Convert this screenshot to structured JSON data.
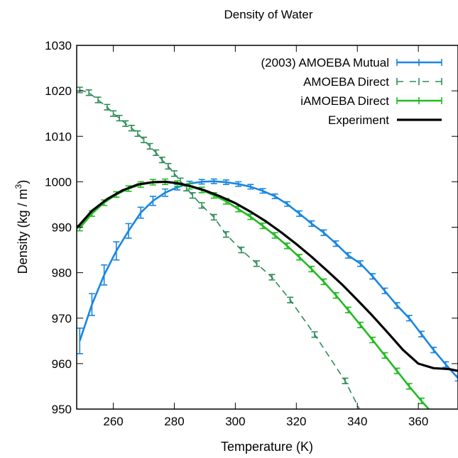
{
  "chart_data": {
    "type": "line",
    "title": "Density of Water",
    "xlabel": "Temperature (K)",
    "ylabel_main": "Density (kg / m",
    "ylabel_sup": "3",
    "ylabel_close": ")",
    "xlim": [
      248,
      373
    ],
    "ylim": [
      950,
      1030
    ],
    "x_ticks": [
      260,
      280,
      300,
      320,
      340,
      360
    ],
    "y_ticks": [
      950,
      960,
      970,
      980,
      990,
      1000,
      1010,
      1020,
      1030
    ],
    "grid": false,
    "legend_position": "top-right",
    "series": [
      {
        "name": "(2003) AMOEBA Mutual",
        "color": "#1a86e0",
        "style": "solid-errorbars",
        "x": [
          249,
          253,
          257,
          261,
          265,
          269,
          273,
          277,
          281,
          285,
          289,
          293,
          297,
          301,
          305,
          309,
          313,
          317,
          321,
          325,
          329,
          333,
          337,
          341,
          345,
          349,
          353,
          357,
          361,
          365,
          369,
          373
        ],
        "y": [
          965,
          973,
          979.5,
          984.8,
          989.2,
          993.2,
          995.8,
          997.6,
          998.8,
          999.6,
          1000.0,
          1000.1,
          999.9,
          999.5,
          998.9,
          998.0,
          996.8,
          995.1,
          993.0,
          990.8,
          988.8,
          986.4,
          983.8,
          982.0,
          979.2,
          976.0,
          972.8,
          970.0,
          966.5,
          963.0,
          959.8,
          956.8
        ],
        "err": [
          2.8,
          2.4,
          2.2,
          2.0,
          1.6,
          1.2,
          1.0,
          0.8,
          0.6,
          0.5,
          0.5,
          0.5,
          0.5,
          0.5,
          0.5,
          0.5,
          0.5,
          0.5,
          0.6,
          0.6,
          0.6,
          0.6,
          0.6,
          0.6,
          0.6,
          0.6,
          0.6,
          0.6,
          0.6,
          0.6,
          0.6,
          0.6
        ]
      },
      {
        "name": "AMOEBA Direct",
        "color": "#2e8b57",
        "style": "dashed-errorbars",
        "x": [
          249,
          252,
          255,
          258,
          260,
          262,
          264,
          266,
          268,
          270,
          272,
          274,
          276,
          278,
          280,
          282,
          284,
          286,
          289,
          293,
          297,
          302,
          307,
          312,
          318,
          326,
          336,
          346
        ],
        "y": [
          1020.2,
          1019.6,
          1018.0,
          1016.4,
          1015.0,
          1014.0,
          1012.8,
          1011.8,
          1010.6,
          1009.2,
          1007.8,
          1006.4,
          1004.8,
          1003.4,
          1001.8,
          1000.2,
          998.6,
          997.0,
          994.8,
          992.2,
          988.4,
          985.0,
          982.0,
          979.0,
          974.0,
          966.4,
          956.2,
          943.0
        ],
        "err": [
          0.6,
          0.6,
          0.6,
          0.6,
          0.6,
          0.6,
          0.6,
          0.6,
          0.6,
          0.6,
          0.6,
          0.6,
          0.6,
          0.6,
          0.6,
          0.6,
          0.6,
          0.6,
          0.6,
          0.6,
          0.6,
          0.6,
          0.6,
          0.6,
          0.6,
          0.6,
          0.6,
          0.6
        ]
      },
      {
        "name": "iAMOEBA Direct",
        "color": "#22bb22",
        "style": "solid-errorbars",
        "x": [
          249,
          253,
          257,
          261,
          265,
          269,
          273,
          277,
          281,
          285,
          289,
          293,
          297,
          301,
          305,
          309,
          313,
          317,
          321,
          325,
          329,
          333,
          337,
          341,
          345,
          349,
          353,
          357,
          361,
          365,
          369,
          373
        ],
        "y": [
          989.8,
          993.0,
          995.4,
          997.2,
          998.5,
          999.4,
          999.9,
          1000.0,
          999.6,
          999.0,
          998.2,
          997.0,
          995.7,
          994.0,
          992.3,
          990.3,
          988.2,
          985.9,
          983.4,
          980.8,
          978.0,
          975.0,
          971.8,
          968.5,
          965.2,
          961.8,
          958.4,
          955.0,
          951.8,
          948.8,
          946.0,
          943.0
        ],
        "err": [
          0.6,
          0.6,
          0.6,
          0.6,
          0.6,
          0.6,
          0.6,
          0.6,
          0.6,
          0.6,
          0.6,
          0.6,
          0.6,
          0.6,
          0.6,
          0.6,
          0.6,
          0.6,
          0.6,
          0.6,
          0.6,
          0.6,
          0.6,
          0.6,
          0.6,
          0.6,
          0.6,
          0.6,
          0.6,
          0.6,
          0.6,
          0.6
        ]
      },
      {
        "name": "Experiment",
        "color": "#000000",
        "style": "solid",
        "x": [
          248,
          253,
          258,
          263,
          268,
          273,
          277,
          281,
          285,
          290,
          295,
          300,
          305,
          310,
          315,
          320,
          325,
          330,
          335,
          340,
          345,
          350,
          355,
          360,
          365,
          370,
          373
        ],
        "y": [
          989.8,
          993.6,
          996.2,
          998.1,
          999.4,
          999.9,
          1000.0,
          999.7,
          999.1,
          998.1,
          996.8,
          995.3,
          993.4,
          991.3,
          988.9,
          986.3,
          983.5,
          980.5,
          977.4,
          974.0,
          970.5,
          966.8,
          963.0,
          960.0,
          959.0,
          958.8,
          958.4
        ]
      }
    ]
  }
}
